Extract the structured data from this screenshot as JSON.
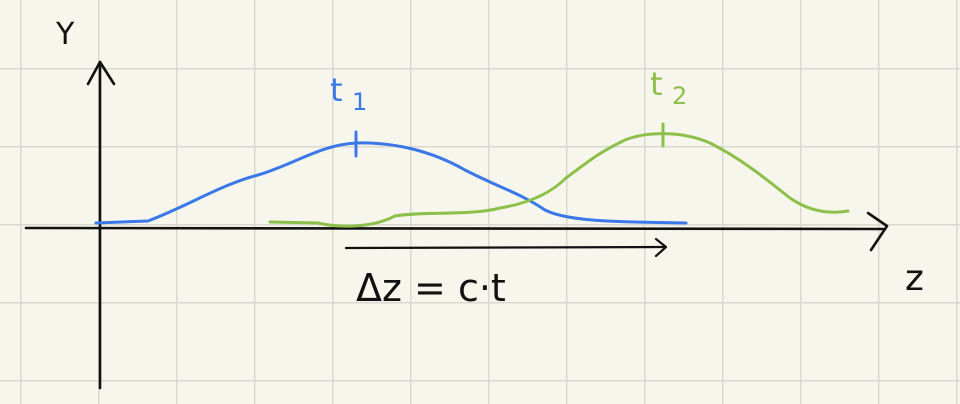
{
  "axes": {
    "y_label": "Y",
    "z_label": "z"
  },
  "curves": {
    "t1": {
      "label": "t",
      "subscript": "1",
      "color": "#3b78e7"
    },
    "t2": {
      "label": "t",
      "subscript": "2",
      "color": "#8dc04a"
    }
  },
  "shift": {
    "label": "Δz = c·t"
  },
  "colors": {
    "axis": "#111111",
    "grid": "#d9d9d2",
    "paper": "#f7f6ec"
  }
}
